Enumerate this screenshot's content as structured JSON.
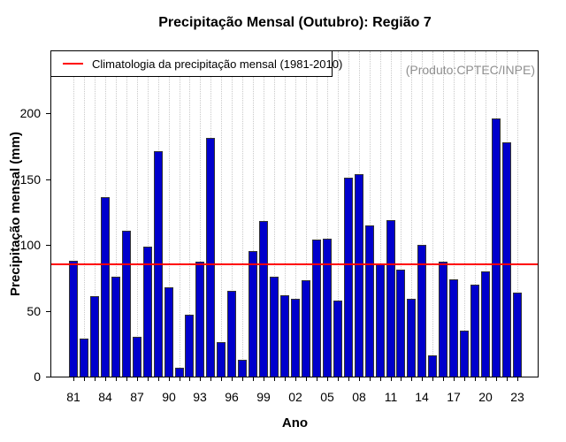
{
  "title": "Precipitação Mensal (Outubro): Região 7",
  "watermark": "(Produto:CPTEC/INPE)",
  "legend": {
    "label": "Climatologia da precipitação mensal (1981-2010)"
  },
  "chart_data": {
    "type": "bar",
    "title": "Precipitação Mensal (Outubro): Região 7",
    "xlabel": "Ano",
    "ylabel": "Precipitação mensal (mm)",
    "years": [
      1981,
      1982,
      1983,
      1984,
      1985,
      1986,
      1987,
      1988,
      1989,
      1990,
      1991,
      1992,
      1993,
      1994,
      1995,
      1996,
      1997,
      1998,
      1999,
      2000,
      2001,
      2002,
      2003,
      2004,
      2005,
      2006,
      2007,
      2008,
      2009,
      2010,
      2011,
      2012,
      2013,
      2014,
      2015,
      2016,
      2017,
      2018,
      2019,
      2020,
      2021,
      2022,
      2023
    ],
    "values": [
      88,
      29,
      61,
      136,
      76,
      111,
      30,
      99,
      171,
      68,
      7,
      47,
      87,
      181,
      26,
      65,
      13,
      95,
      118,
      76,
      62,
      59,
      73,
      104,
      105,
      58,
      151,
      154,
      115,
      86,
      119,
      81,
      59,
      100,
      16,
      87,
      74,
      35,
      70,
      80,
      196,
      178,
      64
    ],
    "xtick_labels": [
      "81",
      "84",
      "87",
      "90",
      "93",
      "96",
      "99",
      "02",
      "05",
      "08",
      "11",
      "14",
      "17",
      "20",
      "23"
    ],
    "xtick_every": 3,
    "yticks": [
      0,
      50,
      100,
      150,
      200
    ],
    "ylim": [
      0,
      247
    ],
    "grid": "vertical-dotted",
    "grid_color": "#c9c9c9",
    "legend_position": "top-left",
    "bar_color": "#0000cc",
    "bar_border_color": "#333333",
    "reference_line": {
      "label": "Climatologia da precipitação mensal (1981-2010)",
      "value": 85,
      "color": "#ff0000"
    },
    "watermark": "(Produto:CPTEC/INPE)",
    "watermark_color": "#8f8f8f"
  }
}
